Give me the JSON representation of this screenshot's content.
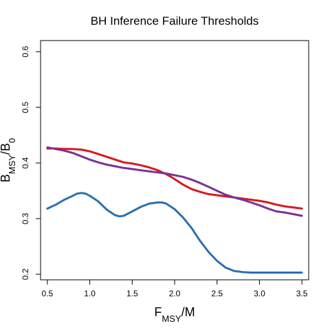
{
  "chart_data": {
    "type": "line",
    "title": "BH Inference Failure Thresholds",
    "xlabel": {
      "main": "F",
      "sub": "MSY",
      "suffix": "/M"
    },
    "ylabel": {
      "main": "B",
      "sub": "MSY",
      "sep": "/",
      "main2": "B",
      "sub2": "0"
    },
    "xlim": [
      0.42,
      3.58
    ],
    "ylim": [
      0.19,
      0.62
    ],
    "xticks": [
      0.5,
      1.0,
      1.5,
      2.0,
      2.5,
      3.0,
      3.5
    ],
    "xtick_labels": [
      "0.5",
      "1.0",
      "1.5",
      "2.0",
      "2.5",
      "3.0",
      "3.5"
    ],
    "yticks": [
      0.2,
      0.3,
      0.4,
      0.5,
      0.6
    ],
    "ytick_labels": [
      "0.2",
      "0.3",
      "0.4",
      "0.5",
      "0.6"
    ],
    "grid": false,
    "series": [
      {
        "color": "#d7191c",
        "x": [
          0.5,
          0.6,
          0.7,
          0.8,
          0.9,
          1.0,
          1.1,
          1.2,
          1.3,
          1.4,
          1.5,
          1.6,
          1.7,
          1.8,
          1.9,
          2.0,
          2.1,
          2.2,
          2.3,
          2.4,
          2.5,
          2.6,
          2.7,
          2.8,
          2.9,
          3.0,
          3.1,
          3.2,
          3.3,
          3.4,
          3.5
        ],
        "values": [
          0.426,
          0.426,
          0.425,
          0.425,
          0.424,
          0.421,
          0.416,
          0.411,
          0.406,
          0.401,
          0.399,
          0.396,
          0.392,
          0.387,
          0.38,
          0.371,
          0.361,
          0.353,
          0.348,
          0.344,
          0.342,
          0.34,
          0.338,
          0.336,
          0.334,
          0.332,
          0.329,
          0.325,
          0.322,
          0.32,
          0.318
        ]
      },
      {
        "color": "#7b3294",
        "x": [
          0.5,
          0.6,
          0.7,
          0.8,
          0.9,
          1.0,
          1.1,
          1.2,
          1.3,
          1.4,
          1.5,
          1.6,
          1.7,
          1.8,
          1.9,
          2.0,
          2.1,
          2.2,
          2.3,
          2.4,
          2.5,
          2.6,
          2.7,
          2.8,
          2.9,
          3.0,
          3.1,
          3.2,
          3.3,
          3.4,
          3.5
        ],
        "values": [
          0.428,
          0.425,
          0.422,
          0.418,
          0.412,
          0.406,
          0.401,
          0.397,
          0.394,
          0.391,
          0.389,
          0.387,
          0.385,
          0.383,
          0.381,
          0.378,
          0.375,
          0.37,
          0.364,
          0.357,
          0.35,
          0.343,
          0.338,
          0.334,
          0.329,
          0.324,
          0.318,
          0.313,
          0.311,
          0.308,
          0.305
        ]
      },
      {
        "color": "#2c6fb0",
        "x": [
          0.5,
          0.6,
          0.7,
          0.8,
          0.85,
          0.9,
          0.95,
          1.0,
          1.1,
          1.2,
          1.3,
          1.35,
          1.4,
          1.5,
          1.6,
          1.7,
          1.8,
          1.85,
          1.9,
          2.0,
          2.1,
          2.2,
          2.3,
          2.4,
          2.5,
          2.6,
          2.7,
          2.8,
          2.9,
          3.0,
          3.1,
          3.2,
          3.3,
          3.4,
          3.5
        ],
        "values": [
          0.318,
          0.325,
          0.334,
          0.341,
          0.345,
          0.346,
          0.345,
          0.341,
          0.331,
          0.316,
          0.306,
          0.304,
          0.305,
          0.313,
          0.321,
          0.327,
          0.329,
          0.329,
          0.327,
          0.317,
          0.302,
          0.283,
          0.26,
          0.24,
          0.224,
          0.212,
          0.206,
          0.204,
          0.203,
          0.203,
          0.203,
          0.203,
          0.203,
          0.203,
          0.203
        ]
      }
    ]
  }
}
